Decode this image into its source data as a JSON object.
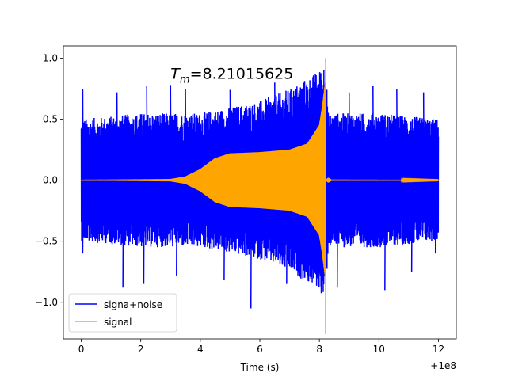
{
  "chart_data": {
    "type": "line",
    "title": "",
    "xlabel": "Time (s)",
    "ylabel": "",
    "x_offset_label": "+1e8",
    "xlim": [
      -0.6,
      12.6
    ],
    "ylim": [
      -1.3,
      1.1
    ],
    "x_ticks": [
      0,
      2,
      4,
      6,
      8,
      10,
      12
    ],
    "x_tick_labels": [
      "0",
      "2",
      "4",
      "6",
      "8",
      "10",
      "12"
    ],
    "y_ticks": [
      -1.0,
      -0.5,
      0.0,
      0.5,
      1.0
    ],
    "y_tick_labels": [
      "−1.0",
      "−0.5",
      "0.0",
      "0.5",
      "1.0"
    ],
    "grid": false,
    "legend_position": "lower-left",
    "annotation": {
      "prefix": "T",
      "subscript": "m",
      "value_text": "=8.21015625",
      "x": 3.0,
      "y": 0.83
    },
    "series": [
      {
        "name": "signa+noise",
        "color": "#0000ff",
        "x_range": [
          0,
          12
        ],
        "envelope_upper": [
          [
            0,
            0.5
          ],
          [
            2,
            0.55
          ],
          [
            4,
            0.55
          ],
          [
            5,
            0.6
          ],
          [
            6,
            0.65
          ],
          [
            7,
            0.75
          ],
          [
            8,
            0.9
          ],
          [
            8.2,
            1.0
          ],
          [
            8.3,
            0.55
          ],
          [
            10,
            0.55
          ],
          [
            12,
            0.5
          ]
        ],
        "envelope_lower": [
          [
            0,
            -0.5
          ],
          [
            2,
            -0.55
          ],
          [
            4,
            -0.55
          ],
          [
            5,
            -0.6
          ],
          [
            6,
            -0.65
          ],
          [
            7,
            -0.75
          ],
          [
            8,
            -0.9
          ],
          [
            8.2,
            -1.0
          ],
          [
            8.3,
            -0.55
          ],
          [
            10,
            -0.55
          ],
          [
            12,
            -0.5
          ]
        ],
        "extreme_max": [
          [
            0.05,
            0.75
          ],
          [
            1.2,
            0.72
          ],
          [
            2.2,
            0.77
          ],
          [
            3.0,
            0.78
          ],
          [
            3.5,
            0.75
          ],
          [
            5.0,
            0.74
          ],
          [
            6.5,
            0.8
          ],
          [
            7.8,
            0.85
          ],
          [
            9.0,
            0.72
          ],
          [
            9.8,
            0.77
          ],
          [
            10.6,
            0.75
          ],
          [
            11.5,
            0.72
          ]
        ],
        "extreme_min": [
          [
            0.05,
            -0.6
          ],
          [
            1.4,
            -0.88
          ],
          [
            2.1,
            -0.85
          ],
          [
            3.2,
            -0.78
          ],
          [
            4.8,
            -0.82
          ],
          [
            5.7,
            -1.05
          ],
          [
            6.9,
            -0.85
          ],
          [
            8.6,
            -0.88
          ],
          [
            10.2,
            -0.9
          ],
          [
            11.1,
            -0.75
          ],
          [
            11.9,
            -0.6
          ]
        ]
      },
      {
        "name": "signal",
        "color": "#ffa500",
        "x_range": [
          0,
          12
        ],
        "envelope": [
          [
            0,
            0.003
          ],
          [
            3.0,
            0.01
          ],
          [
            3.5,
            0.03
          ],
          [
            4.0,
            0.09
          ],
          [
            4.5,
            0.18
          ],
          [
            5.0,
            0.22
          ],
          [
            6.0,
            0.23
          ],
          [
            7.0,
            0.25
          ],
          [
            7.6,
            0.3
          ],
          [
            8.0,
            0.45
          ],
          [
            8.1,
            0.6
          ],
          [
            8.2,
            0.8
          ],
          [
            8.21,
            0.0
          ],
          [
            8.3,
            0.02
          ],
          [
            8.4,
            0.005
          ],
          [
            12,
            0.001
          ]
        ],
        "spike": {
          "x": 8.21,
          "ymax": 1.0,
          "ymin": -1.26
        }
      }
    ]
  }
}
